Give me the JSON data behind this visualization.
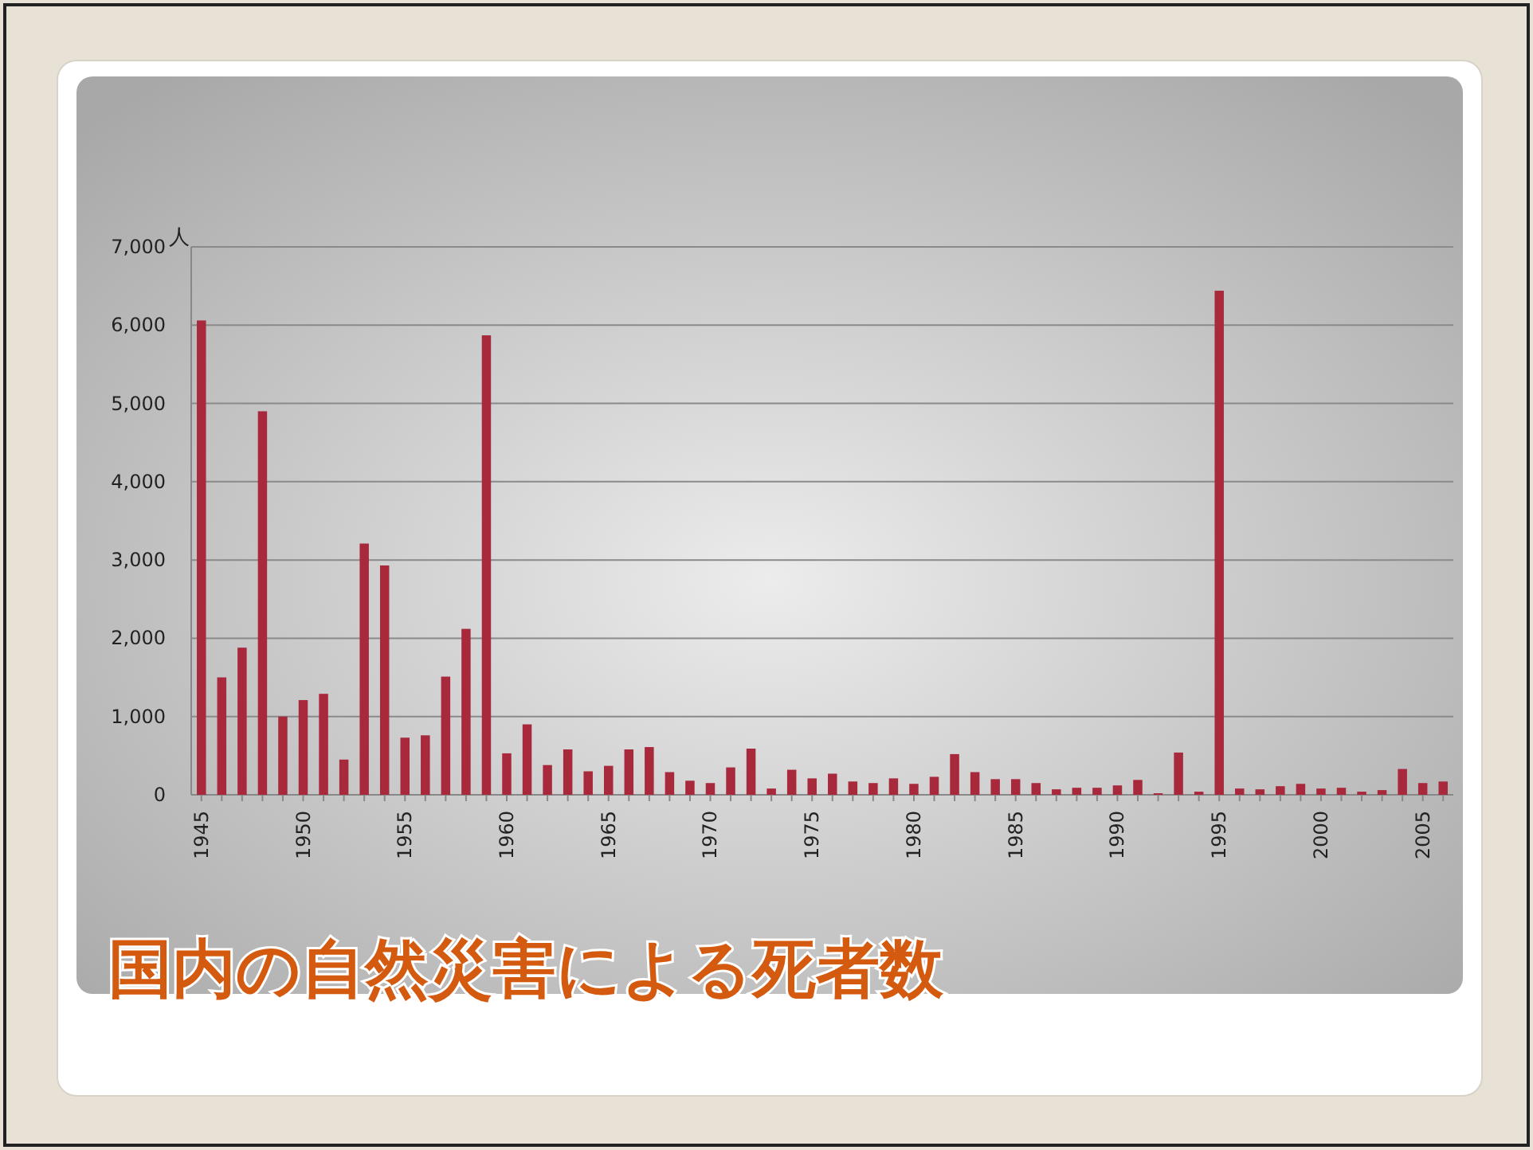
{
  "chart_data": {
    "type": "bar",
    "title": "国内の自然災害による死者数",
    "ylabel": "人",
    "categories": [
      "1945",
      null,
      null,
      null,
      null,
      "1950",
      null,
      null,
      null,
      null,
      "1955",
      null,
      null,
      null,
      null,
      "1960",
      null,
      null,
      null,
      null,
      "1965",
      null,
      null,
      null,
      null,
      "1970",
      null,
      null,
      null,
      null,
      "1975",
      null,
      null,
      null,
      null,
      "1980",
      null,
      null,
      null,
      null,
      "1985",
      null,
      null,
      null,
      null,
      "1990",
      null,
      null,
      null,
      null,
      "1995",
      null,
      null,
      null,
      null,
      "2000",
      null,
      null,
      null,
      null,
      "2005",
      null
    ],
    "values": [
      6060,
      1500,
      1880,
      4900,
      1000,
      1210,
      1290,
      450,
      3210,
      2930,
      730,
      760,
      1510,
      2120,
      5870,
      530,
      900,
      380,
      580,
      300,
      370,
      580,
      610,
      290,
      180,
      150,
      350,
      590,
      80,
      320,
      210,
      270,
      170,
      150,
      210,
      140,
      230,
      520,
      290,
      200,
      200,
      150,
      70,
      90,
      90,
      120,
      190,
      20,
      540,
      40,
      6440,
      80,
      70,
      110,
      140,
      80,
      90,
      40,
      60,
      330,
      150,
      170
    ],
    "color": "#a8283c",
    "ylim": [
      0,
      7000
    ],
    "yticks": [
      0,
      {
        "value": 1000,
        "label": "1,000"
      },
      {
        "value": 2000,
        "label": "2,000"
      },
      {
        "value": 3000,
        "label": "3,000"
      },
      {
        "value": 4000,
        "label": "4,000"
      },
      {
        "value": 5000,
        "label": "5,000"
      },
      {
        "value": 6000,
        "label": "6,000"
      },
      {
        "value": 7000,
        "label": "7,000"
      }
    ],
    "grid": "y"
  }
}
